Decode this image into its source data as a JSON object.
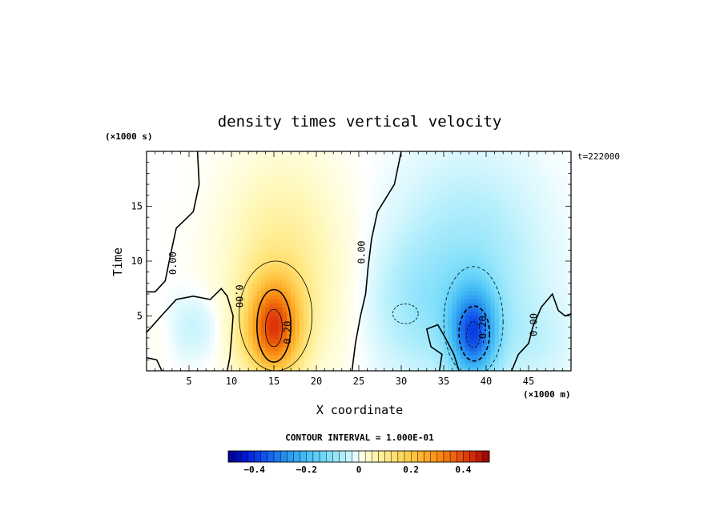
{
  "chart_data": {
    "type": "heatmap",
    "title": "density times vertical velocity",
    "xlabel": "X coordinate",
    "ylabel": "Time",
    "x_unit": "(×1000 m)",
    "y_unit": "(×1000 s)",
    "time_stamp": "t=222000",
    "xlim": [
      0,
      50
    ],
    "ylim": [
      0,
      20
    ],
    "x_ticks": [
      5,
      10,
      15,
      20,
      25,
      30,
      35,
      40,
      45
    ],
    "y_ticks": [
      5,
      10,
      15
    ],
    "contour_interval_text": "CONTOUR INTERVAL = 1.000E-01",
    "contour_labels": [
      {
        "text": "0.00",
        "x": 3.5,
        "y": 9.8,
        "rotation": -90
      },
      {
        "text": "0.00",
        "x": 10.5,
        "y": 6.8,
        "rotation": 90
      },
      {
        "text": "0.20",
        "x": 17.0,
        "y": 3.5,
        "rotation": -90
      },
      {
        "text": "0.00",
        "x": 25.7,
        "y": 10.8,
        "rotation": -90
      },
      {
        "text": "-0.20",
        "x": 40.0,
        "y": 3.7,
        "rotation": -90
      },
      {
        "text": "0.00",
        "x": 46.0,
        "y": 4.2,
        "rotation": -90
      }
    ],
    "features": [
      {
        "name": "positive-core",
        "x": 15.0,
        "y": 4.0,
        "value": 0.35
      },
      {
        "name": "negative-core",
        "x": 38.5,
        "y": 3.5,
        "value": -0.32
      }
    ],
    "colorbar": {
      "min": -0.5,
      "max": 0.5,
      "step": 0.025,
      "ticks": [
        {
          "value": -0.4,
          "label": "−0.4"
        },
        {
          "value": -0.2,
          "label": "−0.2"
        },
        {
          "value": 0,
          "label": "0"
        },
        {
          "value": 0.2,
          "label": "0.2"
        },
        {
          "value": 0.4,
          "label": "0.4"
        }
      ]
    }
  }
}
